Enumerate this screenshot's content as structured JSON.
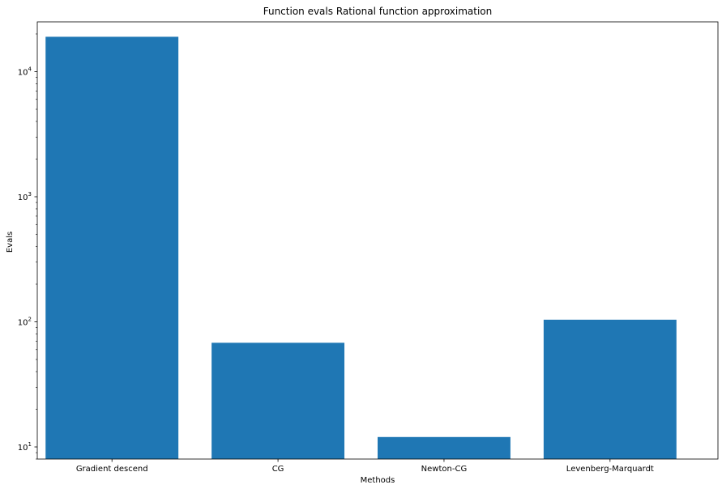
{
  "chart_data": {
    "type": "bar",
    "title": "Function evals Rational function approximation",
    "xlabel": "Methods",
    "ylabel": "Evals",
    "yscale": "log",
    "ylim": [
      8,
      25000
    ],
    "categories": [
      "Gradient descend",
      "CG",
      "Newton-CG",
      "Levenberg-Marquardt"
    ],
    "values": [
      19000,
      68,
      12,
      104
    ],
    "major_ticks": [
      10,
      100,
      1000,
      10000
    ],
    "major_tick_labels": [
      {
        "base": "10",
        "exp": "1"
      },
      {
        "base": "10",
        "exp": "2"
      },
      {
        "base": "10",
        "exp": "3"
      },
      {
        "base": "10",
        "exp": "4"
      }
    ],
    "grid": false,
    "bar_color": "#1f77b4"
  }
}
